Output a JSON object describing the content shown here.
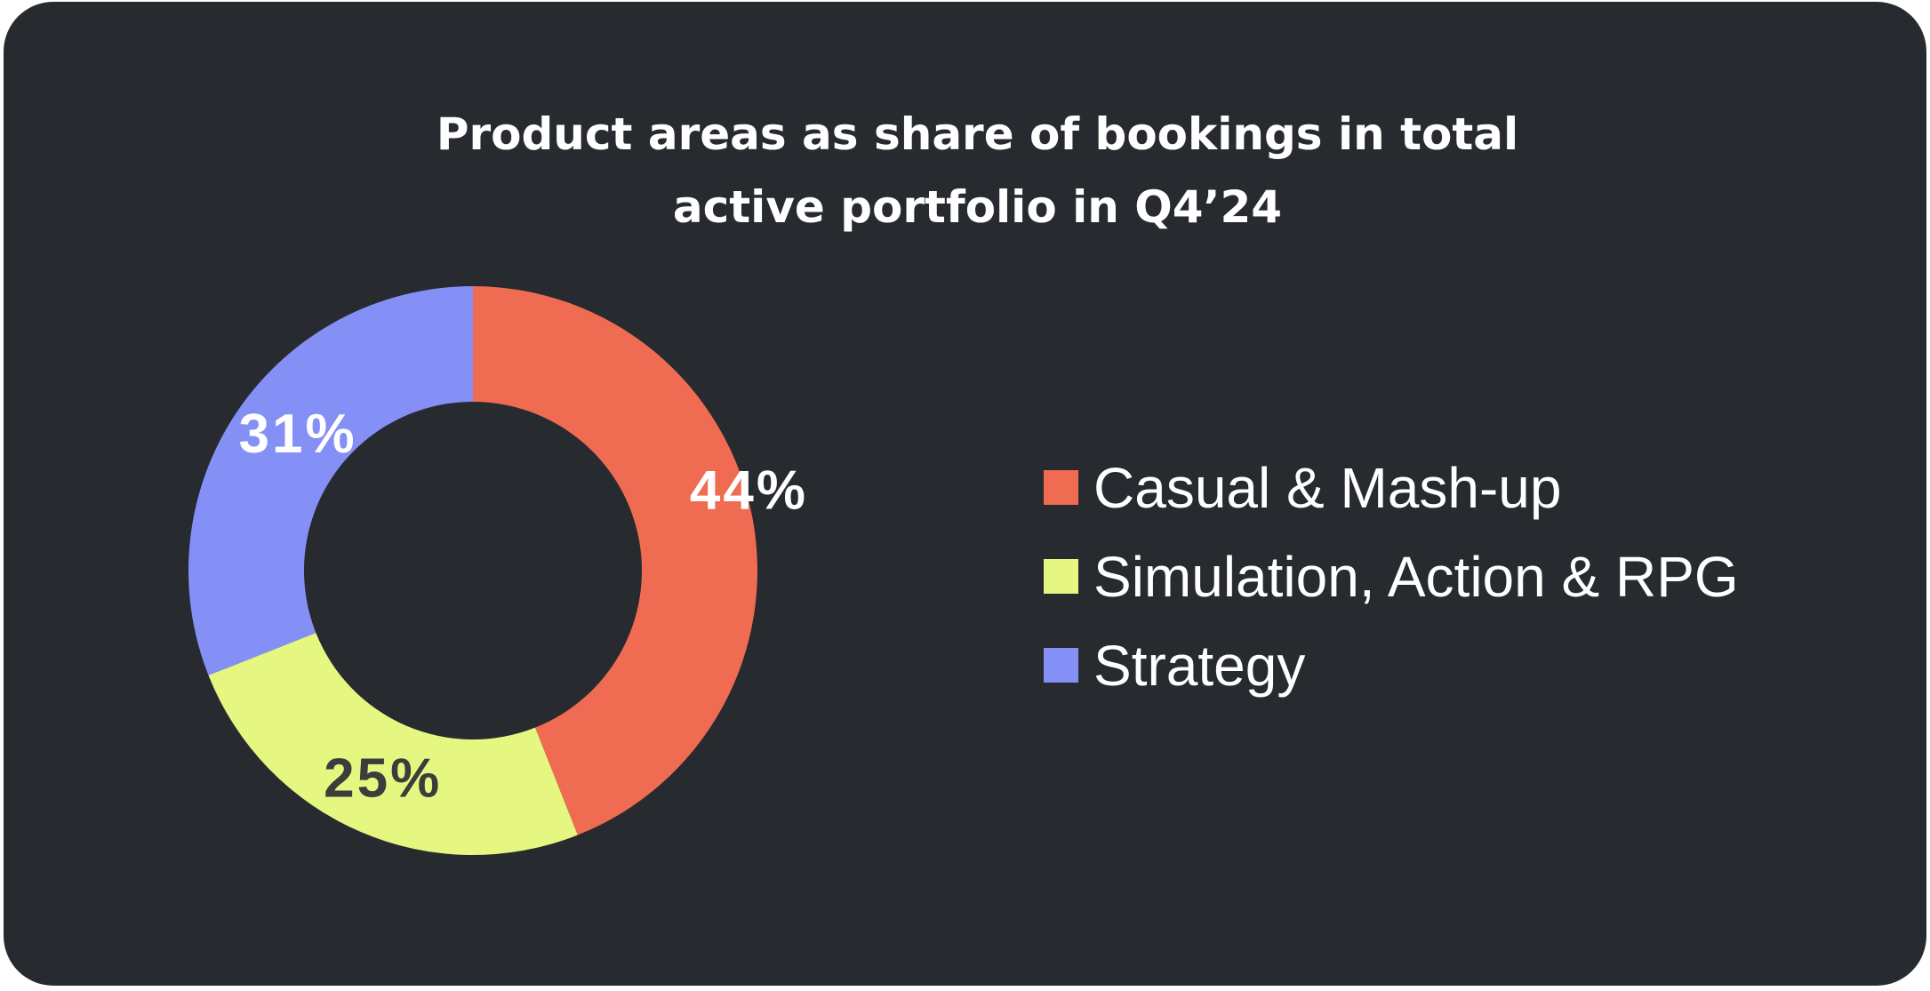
{
  "chart_data": {
    "type": "pie",
    "variant": "donut",
    "title_lines": [
      "Product areas as share of bookings in total",
      "active portfolio in Q4’24"
    ],
    "categories": [
      "Casual & Mash-up",
      "Simulation, Action & RPG",
      "Strategy"
    ],
    "values": [
      44,
      25,
      31
    ],
    "labels": [
      "44%",
      "25%",
      "31%"
    ],
    "unit": "%",
    "colors": [
      "#ef6c52",
      "#e5f780",
      "#8590f7"
    ],
    "label_colors": [
      "#ffffff",
      "#3a3d3a",
      "#ffffff"
    ],
    "start_angle": "12 o'clock",
    "direction": "clockwise",
    "legend_position": "right"
  },
  "background_color": "#272a2f"
}
